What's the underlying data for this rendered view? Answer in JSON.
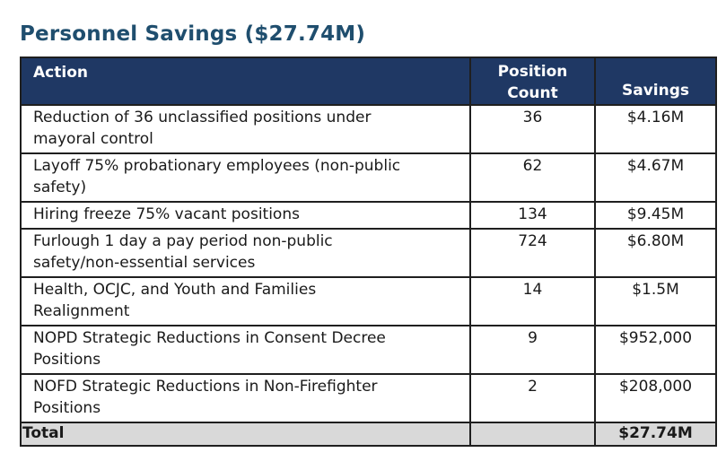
{
  "title": "Personnel Savings ($27.74M)",
  "table": {
    "columns": [
      {
        "label": "Action"
      },
      {
        "label": "Position Count"
      },
      {
        "label": "Savings"
      }
    ],
    "rows": [
      {
        "action": "Reduction of 36 unclassified positions under\nmayoral control",
        "count": "36",
        "savings": "$4.16M"
      },
      {
        "action": "Layoff 75% probationary employees (non-public\nsafety)",
        "count": "62",
        "savings": "$4.67M"
      },
      {
        "action": "Hiring freeze 75% vacant positions",
        "count": "134",
        "savings": "$9.45M"
      },
      {
        "action": "Furlough 1 day a pay period non-public\nsafety/non-essential services",
        "count": "724",
        "savings": "$6.80M"
      },
      {
        "action": "Health, OCJC, and Youth and Families\nRealignment",
        "count": "14",
        "savings": "$1.5M"
      },
      {
        "action": "NOPD Strategic Reductions in Consent Decree\nPositions",
        "count": "9",
        "savings": "$952,000"
      },
      {
        "action": "NOFD Strategic Reductions in Non-Firefighter\nPositions",
        "count": "2",
        "savings": "$208,000"
      }
    ],
    "total": {
      "label": "Total",
      "count": "",
      "savings": "$27.74M"
    }
  },
  "colors": {
    "title_color": "#1f4e6e",
    "header_bg": "#1f3864",
    "header_text": "#ffffff",
    "border_color": "#1f1f1f",
    "body_text": "#1a1a1a",
    "total_row_bg": "#d9d9d9"
  }
}
